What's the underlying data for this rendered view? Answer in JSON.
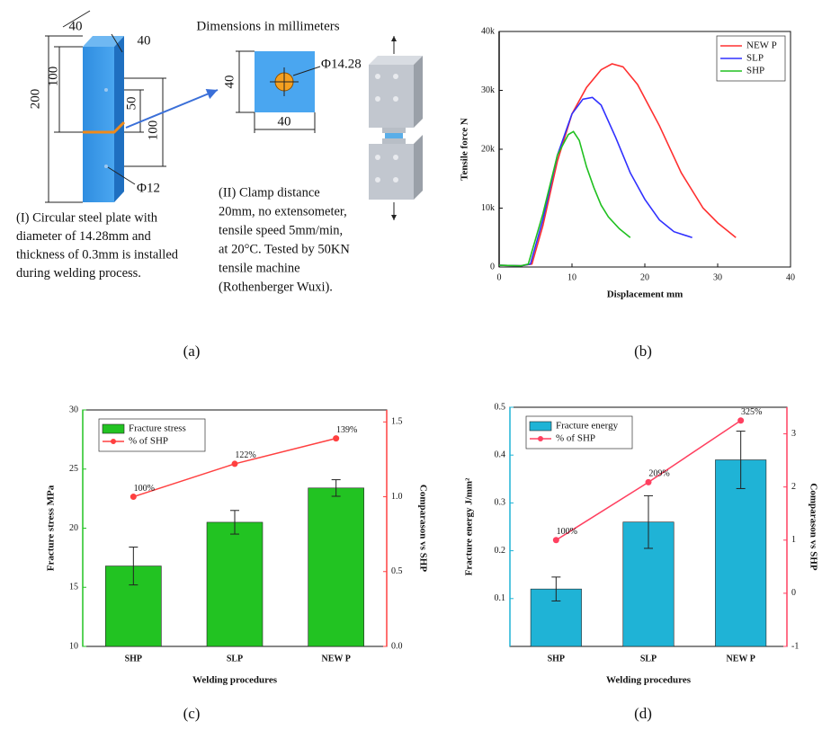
{
  "diagram": {
    "column_dims": [
      "40",
      "40",
      "100",
      "200",
      "50",
      "100",
      "Φ12"
    ],
    "plate_title": "Dimensions in millimeters",
    "plate_dims": [
      "40",
      "Φ14.28",
      "40"
    ],
    "caption_1": [
      "(I)  Circular steel plate with",
      "diameter of 14.28mm and",
      "thickness of 0.3mm is installed",
      "during welding process."
    ],
    "caption_2": [
      "(II) Clamp distance",
      "20mm, no extensometer,",
      "tensile speed 5mm/min,",
      "at 20°C. Tested by 50KN",
      "tensile machine",
      "(Rothenberger Wuxi)."
    ]
  },
  "panel_labels": [
    "(a)",
    "(b)",
    "(c)",
    "(d)"
  ],
  "chart_data": [
    {
      "type": "line",
      "xlabel": "Displacement mm",
      "ylabel": "Tensile force N",
      "xlim": [
        0,
        40
      ],
      "xticks": [
        0,
        10,
        20,
        30,
        40
      ],
      "ylim": [
        0,
        40000
      ],
      "yticks": [
        0,
        {
          "value": 10000,
          "label": "10k"
        },
        {
          "value": 20000,
          "label": "20k"
        },
        {
          "value": 30000,
          "label": "30k"
        },
        {
          "value": 40000,
          "label": "40k"
        }
      ],
      "legend": "upper right",
      "series": [
        {
          "name": "NEW P",
          "color": "#ff3030",
          "x": [
            0,
            3,
            4.5,
            6,
            8,
            10,
            12,
            14,
            15.5,
            17,
            19,
            22,
            25,
            28,
            30,
            32.5
          ],
          "values": [
            300,
            200,
            500,
            7000,
            18000,
            26000,
            30500,
            33500,
            34500,
            34000,
            31000,
            24000,
            16000,
            10000,
            7500,
            5000
          ]
        },
        {
          "name": "SLP",
          "color": "#3030ff",
          "x": [
            0,
            3,
            4.3,
            6,
            8,
            10,
            11.5,
            12.8,
            14,
            16,
            18,
            20,
            22,
            24,
            26.5
          ],
          "values": [
            300,
            200,
            500,
            8000,
            19000,
            26000,
            28500,
            28800,
            27500,
            22000,
            16000,
            11500,
            8000,
            6000,
            5000
          ]
        },
        {
          "name": "SHP",
          "color": "#20c020",
          "x": [
            0,
            3,
            4,
            6,
            8,
            9.5,
            10.2,
            11,
            12,
            13,
            14,
            15,
            16.5,
            18
          ],
          "values": [
            300,
            200,
            500,
            9000,
            19000,
            22500,
            23000,
            21500,
            17000,
            13500,
            10500,
            8500,
            6500,
            5000
          ]
        }
      ]
    },
    {
      "type": "bar",
      "xlabel": "Welding procedures",
      "ylabel": "Fracture stress MPa",
      "y2label": "Comparason vs SHP",
      "categories": [
        "SHP",
        "SLP",
        "NEW P"
      ],
      "ylim": [
        10,
        30
      ],
      "yticks": [
        10,
        15,
        20,
        25,
        30
      ],
      "y2lim": [
        0,
        1.58
      ],
      "y2ticks": [
        {
          "value": 0,
          "label": "0.0"
        },
        0.5,
        {
          "value": 1,
          "label": "1.0"
        },
        1.5
      ],
      "legend": "upper left",
      "series": [
        {
          "name": "Fracture stress",
          "color": "#22c322",
          "values": [
            16.8,
            20.5,
            23.4
          ],
          "errors": [
            1.6,
            1.0,
            0.7
          ]
        },
        {
          "name": "% of SHP",
          "type": "line",
          "axis": "y2",
          "color": "#ff4040",
          "values": [
            1.0,
            1.22,
            1.39
          ],
          "value_labels": [
            "100%",
            "122%",
            "139%"
          ]
        }
      ]
    },
    {
      "type": "bar",
      "xlabel": "Welding procedures",
      "ylabel": "Fracture energy J/mm²",
      "y2label": "Comparason vs SHP",
      "categories": [
        "SHP",
        "SLP",
        "NEW P"
      ],
      "ylim": [
        0,
        0.5
      ],
      "yticks": [
        0.1,
        0.2,
        0.3,
        0.4,
        0.5
      ],
      "y2lim": [
        -1,
        3.5
      ],
      "y2ticks": [
        -1,
        0,
        1,
        2,
        3
      ],
      "legend": "upper left",
      "series": [
        {
          "name": "Fracture energy",
          "color": "#1fb3d6",
          "values": [
            0.12,
            0.26,
            0.39
          ],
          "errors": [
            0.025,
            0.055,
            0.06
          ]
        },
        {
          "name": "% of SHP",
          "type": "line",
          "axis": "y2",
          "color": "#ff4060",
          "values": [
            1.0,
            2.09,
            3.25
          ],
          "value_labels": [
            "100%",
            "209%",
            "325%"
          ]
        }
      ]
    }
  ]
}
